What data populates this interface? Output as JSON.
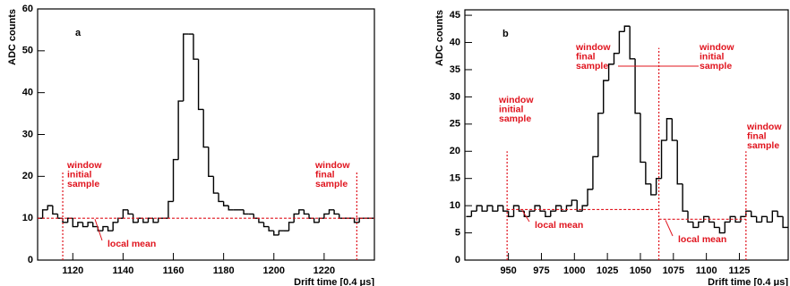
{
  "chart_data": [
    {
      "type": "step",
      "panel_label": "a",
      "y_label": "ADC counts",
      "x_label": "Drift time [0.4 μs]",
      "xlim": [
        1106,
        1240
      ],
      "ylim": [
        0,
        60
      ],
      "xticks": [
        1120,
        1140,
        1160,
        1180,
        1200,
        1220
      ],
      "yticks": [
        0,
        10,
        20,
        30,
        40,
        50,
        60
      ],
      "color": "#000000",
      "marker_color": "#e0141e",
      "x": [
        1106,
        1108,
        1110,
        1112,
        1114,
        1116,
        1118,
        1120,
        1122,
        1124,
        1126,
        1128,
        1130,
        1132,
        1134,
        1136,
        1138,
        1140,
        1142,
        1144,
        1146,
        1148,
        1150,
        1152,
        1154,
        1156,
        1158,
        1160,
        1162,
        1164,
        1166,
        1168,
        1170,
        1172,
        1174,
        1176,
        1178,
        1180,
        1182,
        1184,
        1186,
        1188,
        1190,
        1192,
        1194,
        1196,
        1198,
        1200,
        1202,
        1204,
        1206,
        1208,
        1210,
        1212,
        1214,
        1216,
        1218,
        1220,
        1222,
        1224,
        1226,
        1228,
        1230,
        1232,
        1234,
        1236,
        1238
      ],
      "values": [
        10,
        12,
        13,
        11,
        10,
        9,
        10,
        8,
        9,
        8,
        9,
        8,
        7,
        8,
        7,
        9,
        10,
        12,
        11,
        9,
        10,
        9,
        10,
        9,
        10,
        10,
        14,
        24,
        38,
        54,
        54,
        48,
        36,
        27,
        20,
        16,
        14,
        13,
        12,
        12,
        12,
        11,
        11,
        10,
        9,
        8,
        7,
        6,
        7,
        7,
        9,
        11,
        12,
        11,
        10,
        9,
        10,
        11,
        12,
        11,
        10,
        10,
        10,
        9,
        10,
        10,
        10
      ],
      "window_lines": [
        {
          "x": 1116,
          "top": 21,
          "label": [
            "window",
            "initial",
            "sample"
          ]
        },
        {
          "x": 1233,
          "top": 21,
          "label": [
            "window",
            "final",
            "sample"
          ]
        }
      ],
      "local_means": [
        {
          "from": 1106,
          "to": 1240,
          "value": 10,
          "label": "local mean"
        }
      ]
    },
    {
      "type": "step",
      "panel_label": "b",
      "y_label": "ADC counts",
      "x_label": "Drift time [0.4 μs]",
      "xlim": [
        917,
        1162
      ],
      "ylim": [
        0,
        46
      ],
      "xticks": [
        950,
        975,
        1000,
        1025,
        1050,
        1075,
        1100,
        1125
      ],
      "yticks": [
        0,
        5,
        10,
        15,
        20,
        25,
        30,
        35,
        40,
        45
      ],
      "color": "#000000",
      "marker_color": "#e0141e",
      "x": [
        918,
        922,
        926,
        930,
        934,
        938,
        942,
        946,
        950,
        954,
        958,
        962,
        966,
        970,
        974,
        978,
        982,
        986,
        990,
        994,
        998,
        1002,
        1006,
        1010,
        1014,
        1018,
        1022,
        1026,
        1030,
        1034,
        1038,
        1042,
        1046,
        1050,
        1054,
        1058,
        1062,
        1066,
        1070,
        1074,
        1078,
        1082,
        1086,
        1090,
        1094,
        1098,
        1102,
        1106,
        1110,
        1114,
        1118,
        1122,
        1126,
        1130,
        1134,
        1138,
        1142,
        1146,
        1150,
        1154,
        1158
      ],
      "values": [
        8,
        9,
        10,
        9,
        10,
        9,
        10,
        9,
        8,
        10,
        9,
        8,
        9,
        10,
        9,
        8,
        9,
        10,
        9,
        10,
        11,
        9,
        10,
        13,
        19,
        27,
        33,
        36,
        38,
        42,
        43,
        37,
        27,
        18,
        14,
        12,
        15,
        22,
        26,
        22,
        14,
        9,
        7,
        6,
        7,
        8,
        7,
        6,
        5,
        7,
        8,
        7,
        8,
        9,
        8,
        7,
        8,
        7,
        9,
        8,
        6
      ],
      "window_lines": [
        {
          "x": 949,
          "top": 20,
          "label": [
            "window",
            "initial",
            "sample"
          ]
        },
        {
          "x": 1064,
          "top": 39,
          "label": [
            "window",
            "final",
            "sample"
          ]
        },
        {
          "x": 1130,
          "top": 20,
          "label": [
            "window",
            "final",
            "sample"
          ]
        }
      ],
      "second_labels": [
        {
          "label": [
            "window",
            "initial",
            "sample"
          ]
        }
      ],
      "local_means": [
        {
          "from": 949,
          "to": 1064,
          "value": 9.3,
          "label": "local mean"
        },
        {
          "from": 1064,
          "to": 1130,
          "value": 7.5,
          "label": "local mean"
        }
      ]
    }
  ]
}
